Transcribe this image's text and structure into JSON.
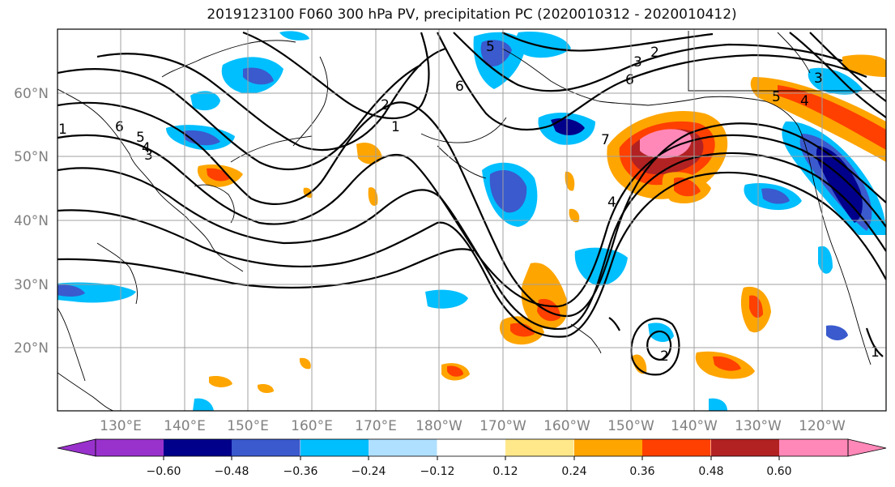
{
  "title": "2019123100 F060 300 hPa PV, precipitation PC (2020010312 - 2020010412)",
  "lat_labels": [
    "60°N",
    "50°N",
    "40°N",
    "30°N",
    "20°N"
  ],
  "lon_labels": [
    "130°E",
    "140°E",
    "150°E",
    "160°E",
    "170°E",
    "180°W",
    "170°W",
    "160°W",
    "150°W",
    "140°W",
    "130°W",
    "120°W"
  ],
  "colorbar": {
    "ticks": [
      "−0.60",
      "−0.48",
      "−0.36",
      "−0.24",
      "−0.12",
      "0.12",
      "0.24",
      "0.36",
      "0.48",
      "0.60"
    ],
    "colors": [
      "#9932cc",
      "#00008b",
      "#3a5acd",
      "#00bfff",
      "#b0e0ff",
      "#ffffff",
      "#ffe88a",
      "#ffa500",
      "#ff4000",
      "#b22222",
      "#ff88b8"
    ]
  },
  "contour_labels": [
    "6",
    "5",
    "4",
    "3",
    "2",
    "1",
    "5",
    "6",
    "3",
    "2",
    "6",
    "7",
    "4",
    "5",
    "4",
    "3",
    "1",
    "2",
    "1"
  ]
}
